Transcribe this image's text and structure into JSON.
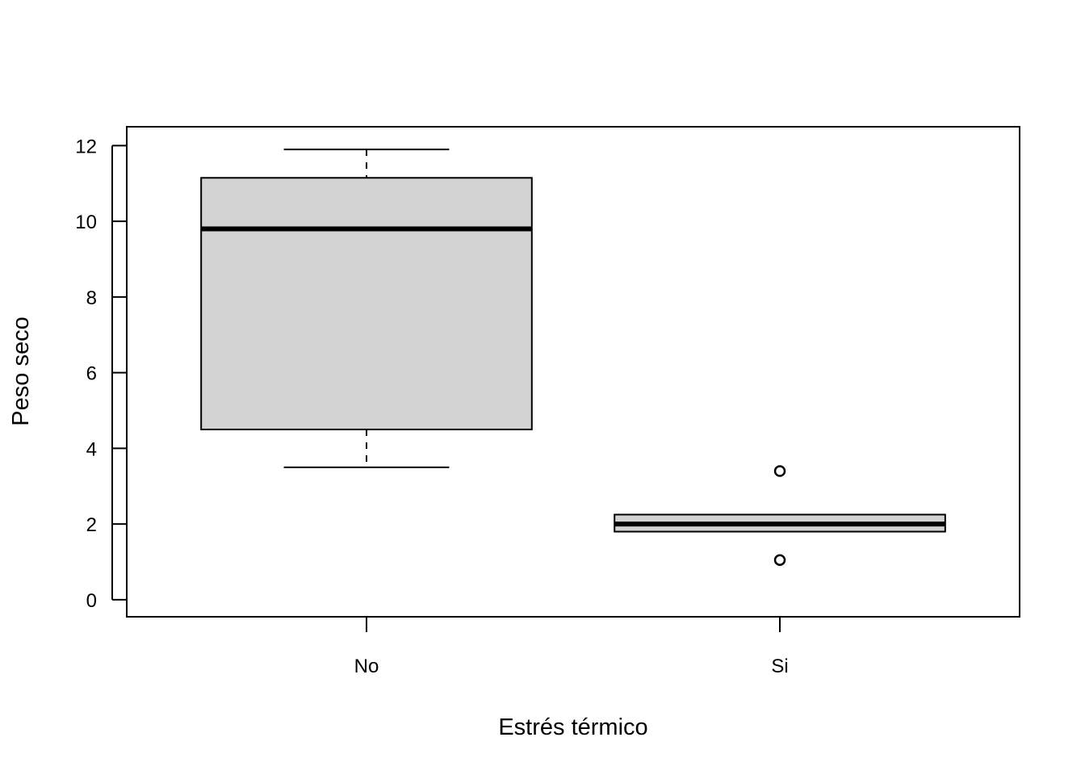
{
  "chart_data": {
    "type": "boxplot",
    "title": "",
    "xlabel": "Estrés térmico",
    "ylabel": "Peso seco",
    "ylim": [
      -0.45,
      12.5
    ],
    "yticks": [
      0,
      2,
      4,
      6,
      8,
      10,
      12
    ],
    "grid": false,
    "categories": [
      "No",
      "Si"
    ],
    "boxes": [
      {
        "category": "No",
        "whisker_low": 3.5,
        "q1": 4.5,
        "median": 9.8,
        "q3": 11.15,
        "whisker_high": 11.9,
        "outliers": []
      },
      {
        "category": "Si",
        "whisker_low": 1.8,
        "q1": 1.8,
        "median": 2.0,
        "q3": 2.25,
        "whisker_high": 2.25,
        "outliers": [
          3.4,
          1.05
        ]
      }
    ],
    "colors": {
      "box_fill": "#d3d3d3",
      "stroke": "#000000"
    }
  }
}
